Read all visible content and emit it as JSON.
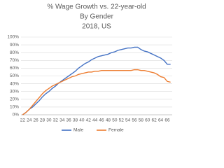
{
  "chart_data": {
    "type": "line",
    "title": "% Wage Growth vs. 22-year-old",
    "subtitle": "By Gender",
    "note": "2018, US",
    "categories": [
      22,
      null,
      24,
      null,
      26,
      null,
      28,
      null,
      30,
      null,
      32,
      null,
      34,
      null,
      36,
      null,
      38,
      null,
      40,
      null,
      42,
      null,
      44,
      null,
      46,
      null,
      48,
      null,
      50,
      null,
      52,
      null,
      54,
      null,
      56,
      null,
      58,
      null,
      60,
      null,
      62,
      null,
      64,
      null,
      66,
      null
    ],
    "series": [
      {
        "name": "Male",
        "color": "#4472c4",
        "values": [
          0,
          3,
          7,
          10,
          14,
          18,
          23,
          27,
          30,
          34,
          37,
          41,
          44,
          47,
          50,
          53,
          56,
          60,
          63,
          66,
          68,
          71,
          73,
          75,
          76,
          77,
          78,
          80,
          81,
          83,
          84,
          85,
          86,
          86,
          87,
          87,
          84,
          82,
          81,
          79,
          77,
          75,
          73,
          70,
          65,
          65
        ]
      },
      {
        "name": "Female",
        "color": "#ed7d31",
        "values": [
          0,
          3,
          7,
          12,
          17,
          22,
          27,
          31,
          34,
          37,
          39,
          41,
          43,
          45,
          47,
          49,
          50,
          52,
          53,
          54,
          55,
          55,
          56,
          56,
          57,
          57,
          57,
          57,
          57,
          57,
          57,
          57,
          57,
          57,
          58,
          58,
          57,
          57,
          56,
          55,
          54,
          52,
          49,
          48,
          43,
          42
        ]
      }
    ],
    "ylim": [
      0,
      100
    ],
    "yticks": [
      {
        "value": 0,
        "label": "0%"
      },
      {
        "value": 10,
        "label": "10%"
      },
      {
        "value": 20,
        "label": "20%"
      },
      {
        "value": 30,
        "label": "30%"
      },
      {
        "value": 40,
        "label": "40%"
      },
      {
        "value": 50,
        "label": "50%"
      },
      {
        "value": 60,
        "label": "60%"
      },
      {
        "value": 70,
        "label": "70%"
      },
      {
        "value": 80,
        "label": "80%"
      },
      {
        "value": 90,
        "label": "90%"
      },
      {
        "value": 100,
        "label": "100%"
      }
    ],
    "grid": true,
    "legend": "bottom"
  }
}
